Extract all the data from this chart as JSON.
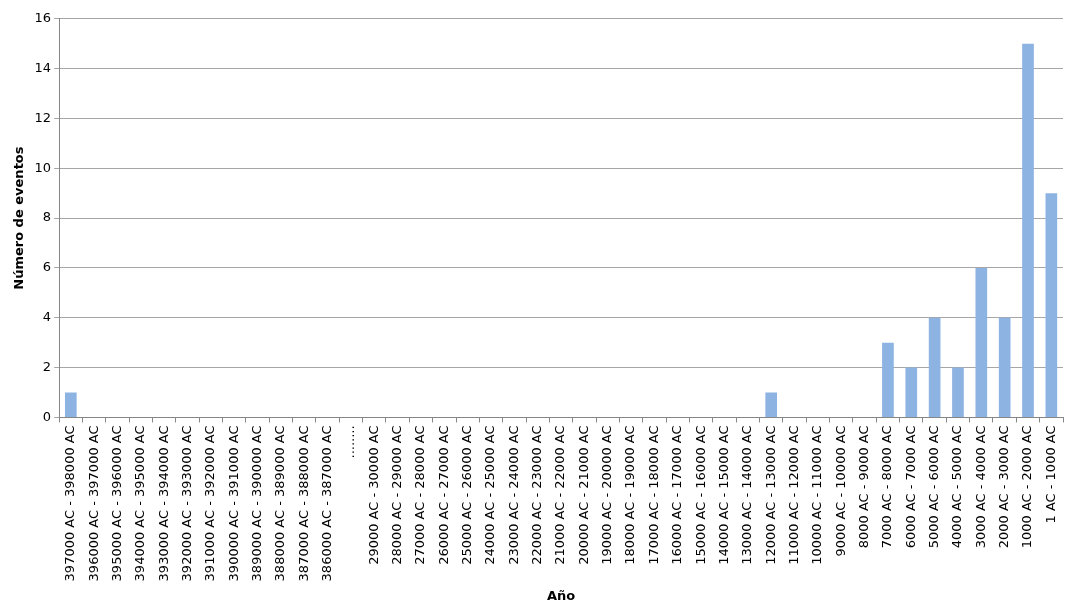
{
  "chart_data": {
    "type": "bar",
    "xlabel": "Año",
    "ylabel": "Número de eventos",
    "categories": [
      "397000 AC - 398000 AC",
      "396000 AC - 397000 AC",
      "395000 AC - 396000 AC",
      "394000 AC - 395000 AC",
      "393000 AC - 394000 AC",
      "392000 AC - 393000 AC",
      "391000 AC - 392000 AC",
      "390000 AC - 391000 AC",
      "389000 AC - 390000 AC",
      "388000 AC - 389000 AC",
      "387000 AC - 388000 AC",
      "386000 AC - 387000 AC",
      "........",
      "29000 AC - 30000 AC",
      "28000 AC - 29000 AC",
      "27000 AC - 28000 AC",
      "26000 AC - 27000 AC",
      "25000 AC - 26000 AC",
      "24000 AC - 25000 AC",
      "23000 AC - 24000 AC",
      "22000 AC - 23000 AC",
      "21000 AC - 22000 AC",
      "20000 AC - 21000 AC",
      "19000 AC - 20000 AC",
      "18000 AC - 19000 AC",
      "17000 AC - 18000 AC",
      "16000 AC - 17000 AC",
      "15000 AC - 16000 AC",
      "14000 AC - 15000 AC",
      "13000 AC - 14000 AC",
      "12000 AC - 13000 AC",
      "11000 AC - 12000 AC",
      "10000 AC - 11000 AC",
      "9000 AC - 10000 AC",
      "8000 AC - 9000 AC",
      "7000 AC - 8000 AC",
      "6000 AC - 7000 AC",
      "5000 AC - 6000 AC",
      "4000 AC - 5000 AC",
      "3000 AC - 4000 AC",
      "2000 AC - 3000 AC",
      "1000 AC - 2000 AC",
      "1 AC - 1000 AC"
    ],
    "values": [
      1,
      0,
      0,
      0,
      0,
      0,
      0,
      0,
      0,
      0,
      0,
      0,
      0,
      0,
      0,
      0,
      0,
      0,
      0,
      0,
      0,
      0,
      0,
      0,
      0,
      0,
      0,
      0,
      0,
      0,
      1,
      0,
      0,
      0,
      0,
      3,
      2,
      4,
      2,
      6,
      4,
      15,
      9
    ],
    "color": "#8db3e2",
    "ylim": [
      0,
      16
    ],
    "yticks": [
      0,
      2,
      4,
      6,
      8,
      10,
      12,
      14,
      16
    ],
    "grid": "y",
    "legend": false
  }
}
